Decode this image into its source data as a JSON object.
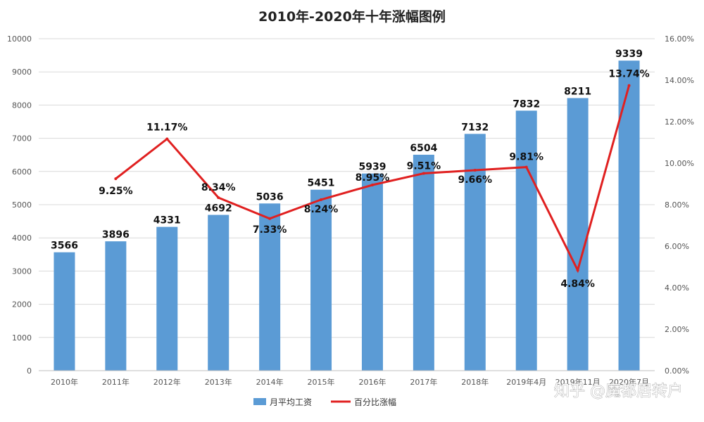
{
  "chart_data": {
    "type": "bar",
    "title": "2010年-2020年十年涨幅图例",
    "categories": [
      "2010年",
      "2011年",
      "2012年",
      "2013年",
      "2014年",
      "2015年",
      "2016年",
      "2017年",
      "2018年",
      "2019年4月",
      "2019年11月",
      "2020年7月"
    ],
    "series": [
      {
        "name": "月平均工资",
        "type": "bar",
        "axis": "left",
        "color": "#5b9bd5",
        "values": [
          3566,
          3896,
          4331,
          4692,
          5036,
          5451,
          5939,
          6504,
          7132,
          7832,
          8211,
          9339
        ],
        "labels": [
          "3566",
          "3896",
          "4331",
          "4692",
          "5036",
          "5451",
          "5939",
          "6504",
          "7132",
          "7832",
          "8211",
          "9339"
        ]
      },
      {
        "name": "百分比涨幅",
        "type": "line",
        "axis": "right",
        "color": "#e02020",
        "values": [
          null,
          9.25,
          11.17,
          8.34,
          7.33,
          8.24,
          8.95,
          9.51,
          9.66,
          9.81,
          4.84,
          13.74
        ],
        "labels": [
          "",
          "9.25%",
          "11.17%",
          "8.34%",
          "7.33%",
          "8.24%",
          "8.95%",
          "9.51%",
          "9.66%",
          "9.81%",
          "4.84%",
          "13.74%"
        ]
      }
    ],
    "y_left": {
      "lim": [
        0,
        10000
      ],
      "ticks": [
        "0",
        "1000",
        "2000",
        "3000",
        "4000",
        "5000",
        "6000",
        "7000",
        "8000",
        "9000",
        "10000"
      ]
    },
    "y_right": {
      "lim": [
        0,
        16
      ],
      "ticks": [
        "0.00%",
        "2.00%",
        "4.00%",
        "6.00%",
        "8.00%",
        "10.00%",
        "12.00%",
        "14.00%",
        "16.00%"
      ]
    },
    "grid": true,
    "legend_position": "bottom"
  },
  "watermark": "知乎 @魔都居转户"
}
